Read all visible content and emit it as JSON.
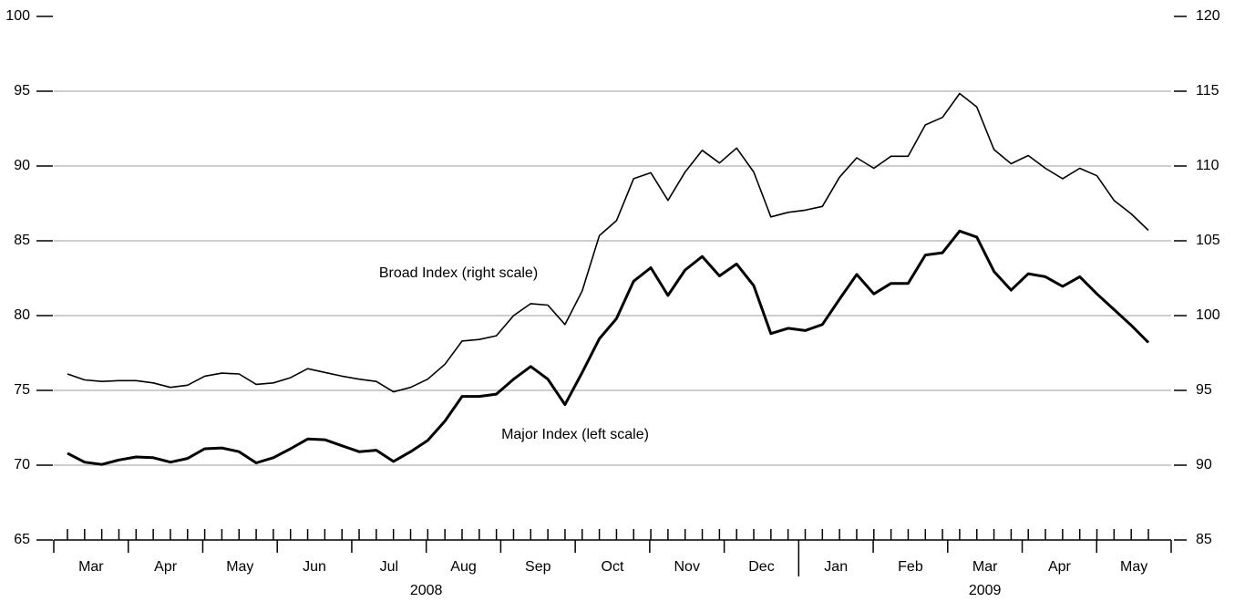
{
  "chart_data": {
    "type": "line",
    "categories": [
      null,
      null,
      null,
      null,
      null,
      null,
      null,
      null,
      null,
      null,
      null,
      null,
      null,
      null,
      null,
      null,
      null,
      null,
      null,
      null,
      null,
      null,
      null,
      null,
      null,
      null,
      null,
      null,
      null,
      null,
      null,
      null,
      null,
      null,
      null,
      null,
      null,
      null,
      null,
      null,
      null,
      null,
      null,
      null,
      null,
      null,
      null,
      null,
      null,
      null,
      null,
      null,
      null,
      null,
      null,
      null,
      null,
      null,
      null,
      null,
      null,
      null,
      null,
      null
    ],
    "x_groups": [
      {
        "year": "2008",
        "months": [
          "Mar",
          "Apr",
          "May",
          "Jun",
          "Jul",
          "Aug",
          "Sep",
          "Oct",
          "Nov",
          "Dec"
        ]
      },
      {
        "year": "2009",
        "months": [
          "Jan",
          "Feb",
          "Mar",
          "Apr",
          "May"
        ]
      }
    ],
    "series": [
      {
        "name": "Major Index (left scale)",
        "color": "#000000",
        "axis": "y",
        "values": [
          70.8,
          70.2,
          70.05,
          70.35,
          70.55,
          70.5,
          70.2,
          70.45,
          71.1,
          71.15,
          70.9,
          70.15,
          70.5,
          71.1,
          71.75,
          71.7,
          71.3,
          70.9,
          71.0,
          70.25,
          70.9,
          71.65,
          72.95,
          74.6,
          74.6,
          74.75,
          75.75,
          76.6,
          75.75,
          74.05,
          76.2,
          78.45,
          79.8,
          82.3,
          83.2,
          81.35,
          83.05,
          83.95,
          82.65,
          83.45,
          82.0,
          78.8,
          79.15,
          79.0,
          79.4,
          81.1,
          82.75,
          81.45,
          82.15,
          82.15,
          84.05,
          84.2,
          85.65,
          85.25,
          82.95,
          81.7,
          82.8,
          82.6,
          81.95,
          82.6,
          81.45,
          80.4,
          79.35,
          78.2
        ]
      },
      {
        "name": "Broad Index (right scale)",
        "color": "#000000",
        "axis": "y2",
        "values": [
          96.1,
          95.7,
          95.6,
          95.65,
          95.65,
          95.5,
          95.2,
          95.35,
          95.95,
          96.15,
          96.1,
          95.4,
          95.5,
          95.85,
          96.45,
          96.2,
          95.95,
          95.75,
          95.6,
          94.9,
          95.2,
          95.75,
          96.75,
          98.3,
          98.4,
          98.65,
          100.0,
          100.8,
          100.7,
          99.4,
          101.65,
          105.35,
          106.35,
          109.15,
          109.55,
          107.7,
          109.6,
          111.05,
          110.2,
          111.2,
          109.6,
          106.6,
          106.9,
          107.05,
          107.3,
          109.25,
          110.55,
          109.85,
          110.65,
          110.65,
          112.75,
          113.25,
          114.85,
          113.95,
          111.1,
          110.15,
          110.7,
          109.85,
          109.15,
          109.85,
          109.35,
          107.7,
          106.8,
          105.7
        ]
      }
    ],
    "ylim": [
      65,
      100
    ],
    "yticks": [
      65,
      70,
      75,
      80,
      85,
      90,
      95,
      100
    ],
    "y2lim": [
      85,
      120
    ],
    "y2ticks": [
      85,
      90,
      95,
      100,
      105,
      110,
      115,
      120
    ],
    "grid": true
  }
}
